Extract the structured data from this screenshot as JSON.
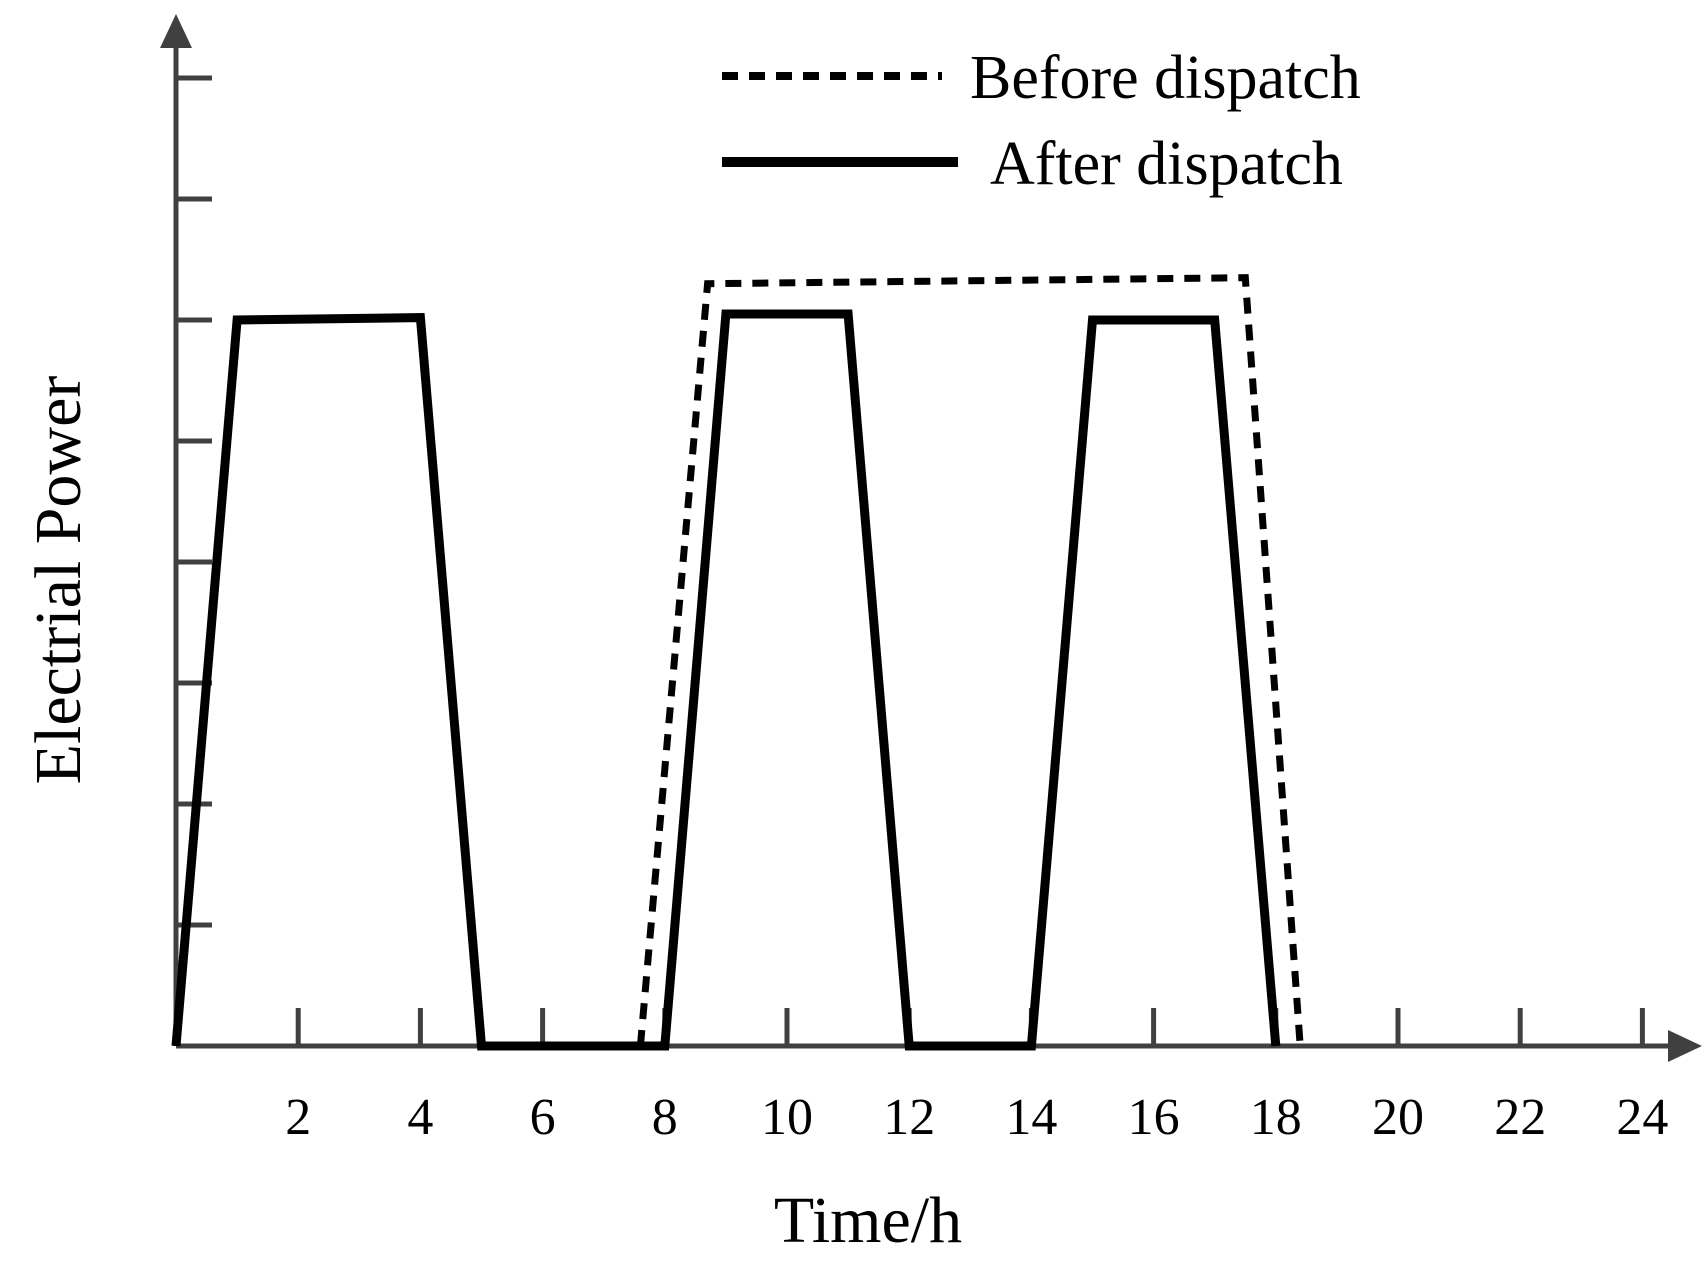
{
  "chart_data": {
    "type": "line",
    "xlabel": "Time/h",
    "ylabel": "Electrial Power",
    "xlim": [
      0,
      24.5
    ],
    "ylim": [
      0,
      8
    ],
    "x_ticks": [
      2,
      4,
      6,
      8,
      10,
      12,
      14,
      16,
      18,
      20,
      22,
      24
    ],
    "x_tick_labels": [
      "2",
      "4",
      "6",
      "8",
      "10",
      "12",
      "14",
      "16",
      "18",
      "20",
      "22",
      "24"
    ],
    "y_ticks": [
      1,
      2,
      3,
      4,
      5,
      6,
      7,
      8
    ],
    "y_tick_labels": [],
    "grid": false,
    "legend_position": "top-right",
    "series": [
      {
        "name": "Before dispatch",
        "style": "dashed",
        "color": "#000000",
        "x": [
          7.6,
          8.7,
          17.5,
          18.4
        ],
        "y": [
          0,
          6.3,
          6.35,
          0
        ]
      },
      {
        "name": "After dispatch",
        "style": "solid",
        "color": "#000000",
        "x": [
          0,
          1,
          4,
          5,
          8,
          9,
          11,
          12,
          14,
          15,
          17,
          18
        ],
        "y": [
          0,
          6,
          6.02,
          0,
          0,
          6.05,
          6.05,
          0,
          0,
          6,
          6,
          0
        ]
      }
    ],
    "axis_color": "#404040"
  }
}
